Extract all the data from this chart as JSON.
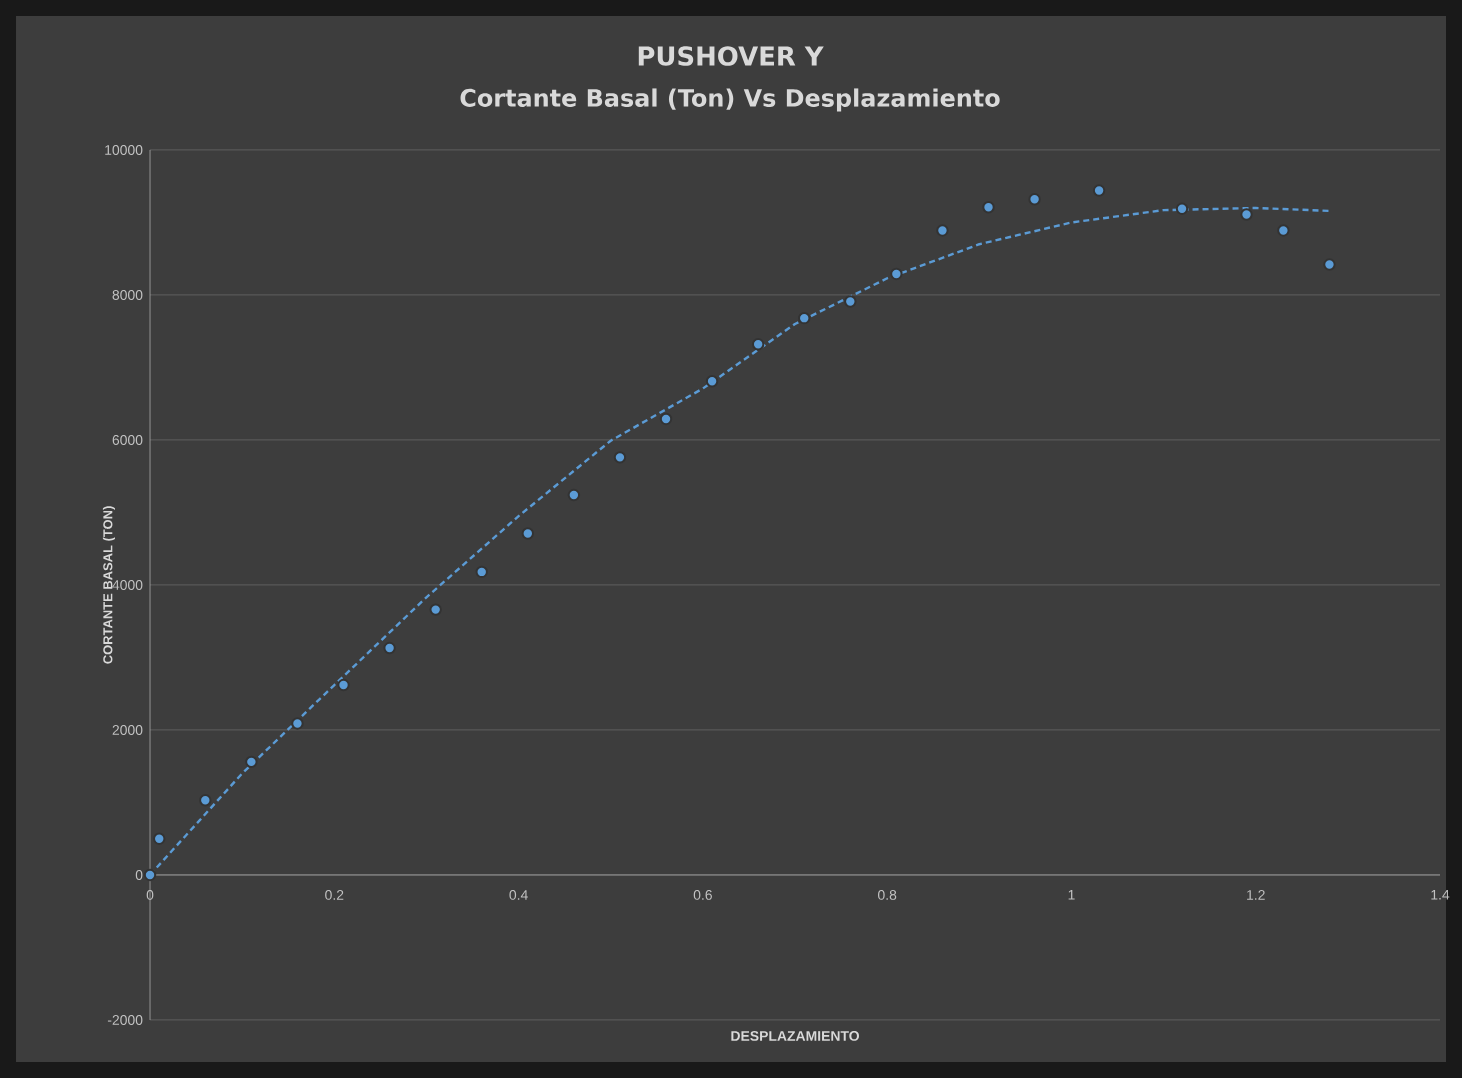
{
  "chart_data": {
    "type": "scatter",
    "title": "PUSHOVER Y",
    "subtitle": "Cortante Basal (Ton) Vs Desplazamiento",
    "xlabel": "DESPLAZAMIENTO",
    "ylabel": "CORTANTE BASAL (TON)",
    "xlim": [
      0,
      1.4
    ],
    "xticks": [
      0,
      0.2,
      0.4,
      0.6,
      0.8,
      1,
      1.2,
      1.4
    ],
    "ylim": [
      -2000,
      10000
    ],
    "yticks": [
      -2000,
      0,
      2000,
      4000,
      6000,
      8000,
      10000
    ],
    "grid": "y",
    "marker": "circle",
    "series": [
      {
        "color": "#5b9bd5",
        "x": [
          0,
          0.01,
          0.06,
          0.11,
          0.16,
          0.21,
          0.26,
          0.31,
          0.36,
          0.41,
          0.46,
          0.51,
          0.56,
          0.61,
          0.66,
          0.71,
          0.76,
          0.81,
          0.86,
          0.91,
          0.96,
          1.03,
          1.12,
          1.19,
          1.23,
          1.28
        ],
        "values": [
          0,
          500,
          1030,
          1560,
          2090,
          2620,
          3130,
          3660,
          4180,
          4710,
          5240,
          5760,
          6290,
          6810,
          7320,
          7680,
          7910,
          8290,
          8890,
          9210,
          9320,
          9440,
          9190,
          9110,
          8890,
          8420
        ]
      },
      {
        "type": "line",
        "color": "#5b9bd5",
        "marker": "none",
        "line_style": "dashed",
        "x": [
          0,
          0.1,
          0.2,
          0.3,
          0.4,
          0.5,
          0.6,
          0.7,
          0.8,
          0.9,
          1.0,
          1.1,
          1.2,
          1.28
        ],
        "values": [
          0,
          1400,
          2620,
          3830,
          4950,
          5990,
          6710,
          7600,
          8230,
          8700,
          9000,
          9170,
          9200,
          9160
        ]
      }
    ]
  }
}
